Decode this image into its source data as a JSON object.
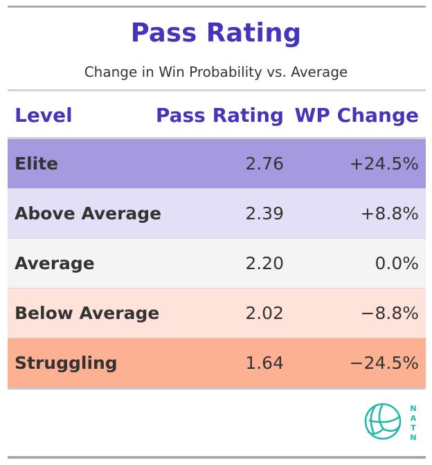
{
  "title": "Pass Rating",
  "subtitle": "Change in Win Probability vs. Average",
  "columns": [
    "Level",
    "Pass Rating",
    "WP Change"
  ],
  "logo_text": "NATN",
  "colors": {
    "accent": "#4535b8",
    "logo": "#1fb8a8"
  },
  "chart_data": {
    "type": "table",
    "title": "Pass Rating",
    "subtitle": "Change in Win Probability vs. Average",
    "columns": [
      "Level",
      "Pass Rating",
      "WP Change"
    ],
    "rows": [
      {
        "level": "Elite",
        "rating": "2.76",
        "wp": "+24.5%",
        "color": "#a59adf"
      },
      {
        "level": "Above Average",
        "rating": "2.39",
        "wp": "+8.8%",
        "color": "#e3dff6"
      },
      {
        "level": "Average",
        "rating": "2.20",
        "wp": "0.0%",
        "color": "#f4f4f4"
      },
      {
        "level": "Below Average",
        "rating": "2.02",
        "wp": "−8.8%",
        "color": "#fde3da"
      },
      {
        "level": "Struggling",
        "rating": "1.64",
        "wp": "−24.5%",
        "color": "#fcb192"
      }
    ]
  }
}
